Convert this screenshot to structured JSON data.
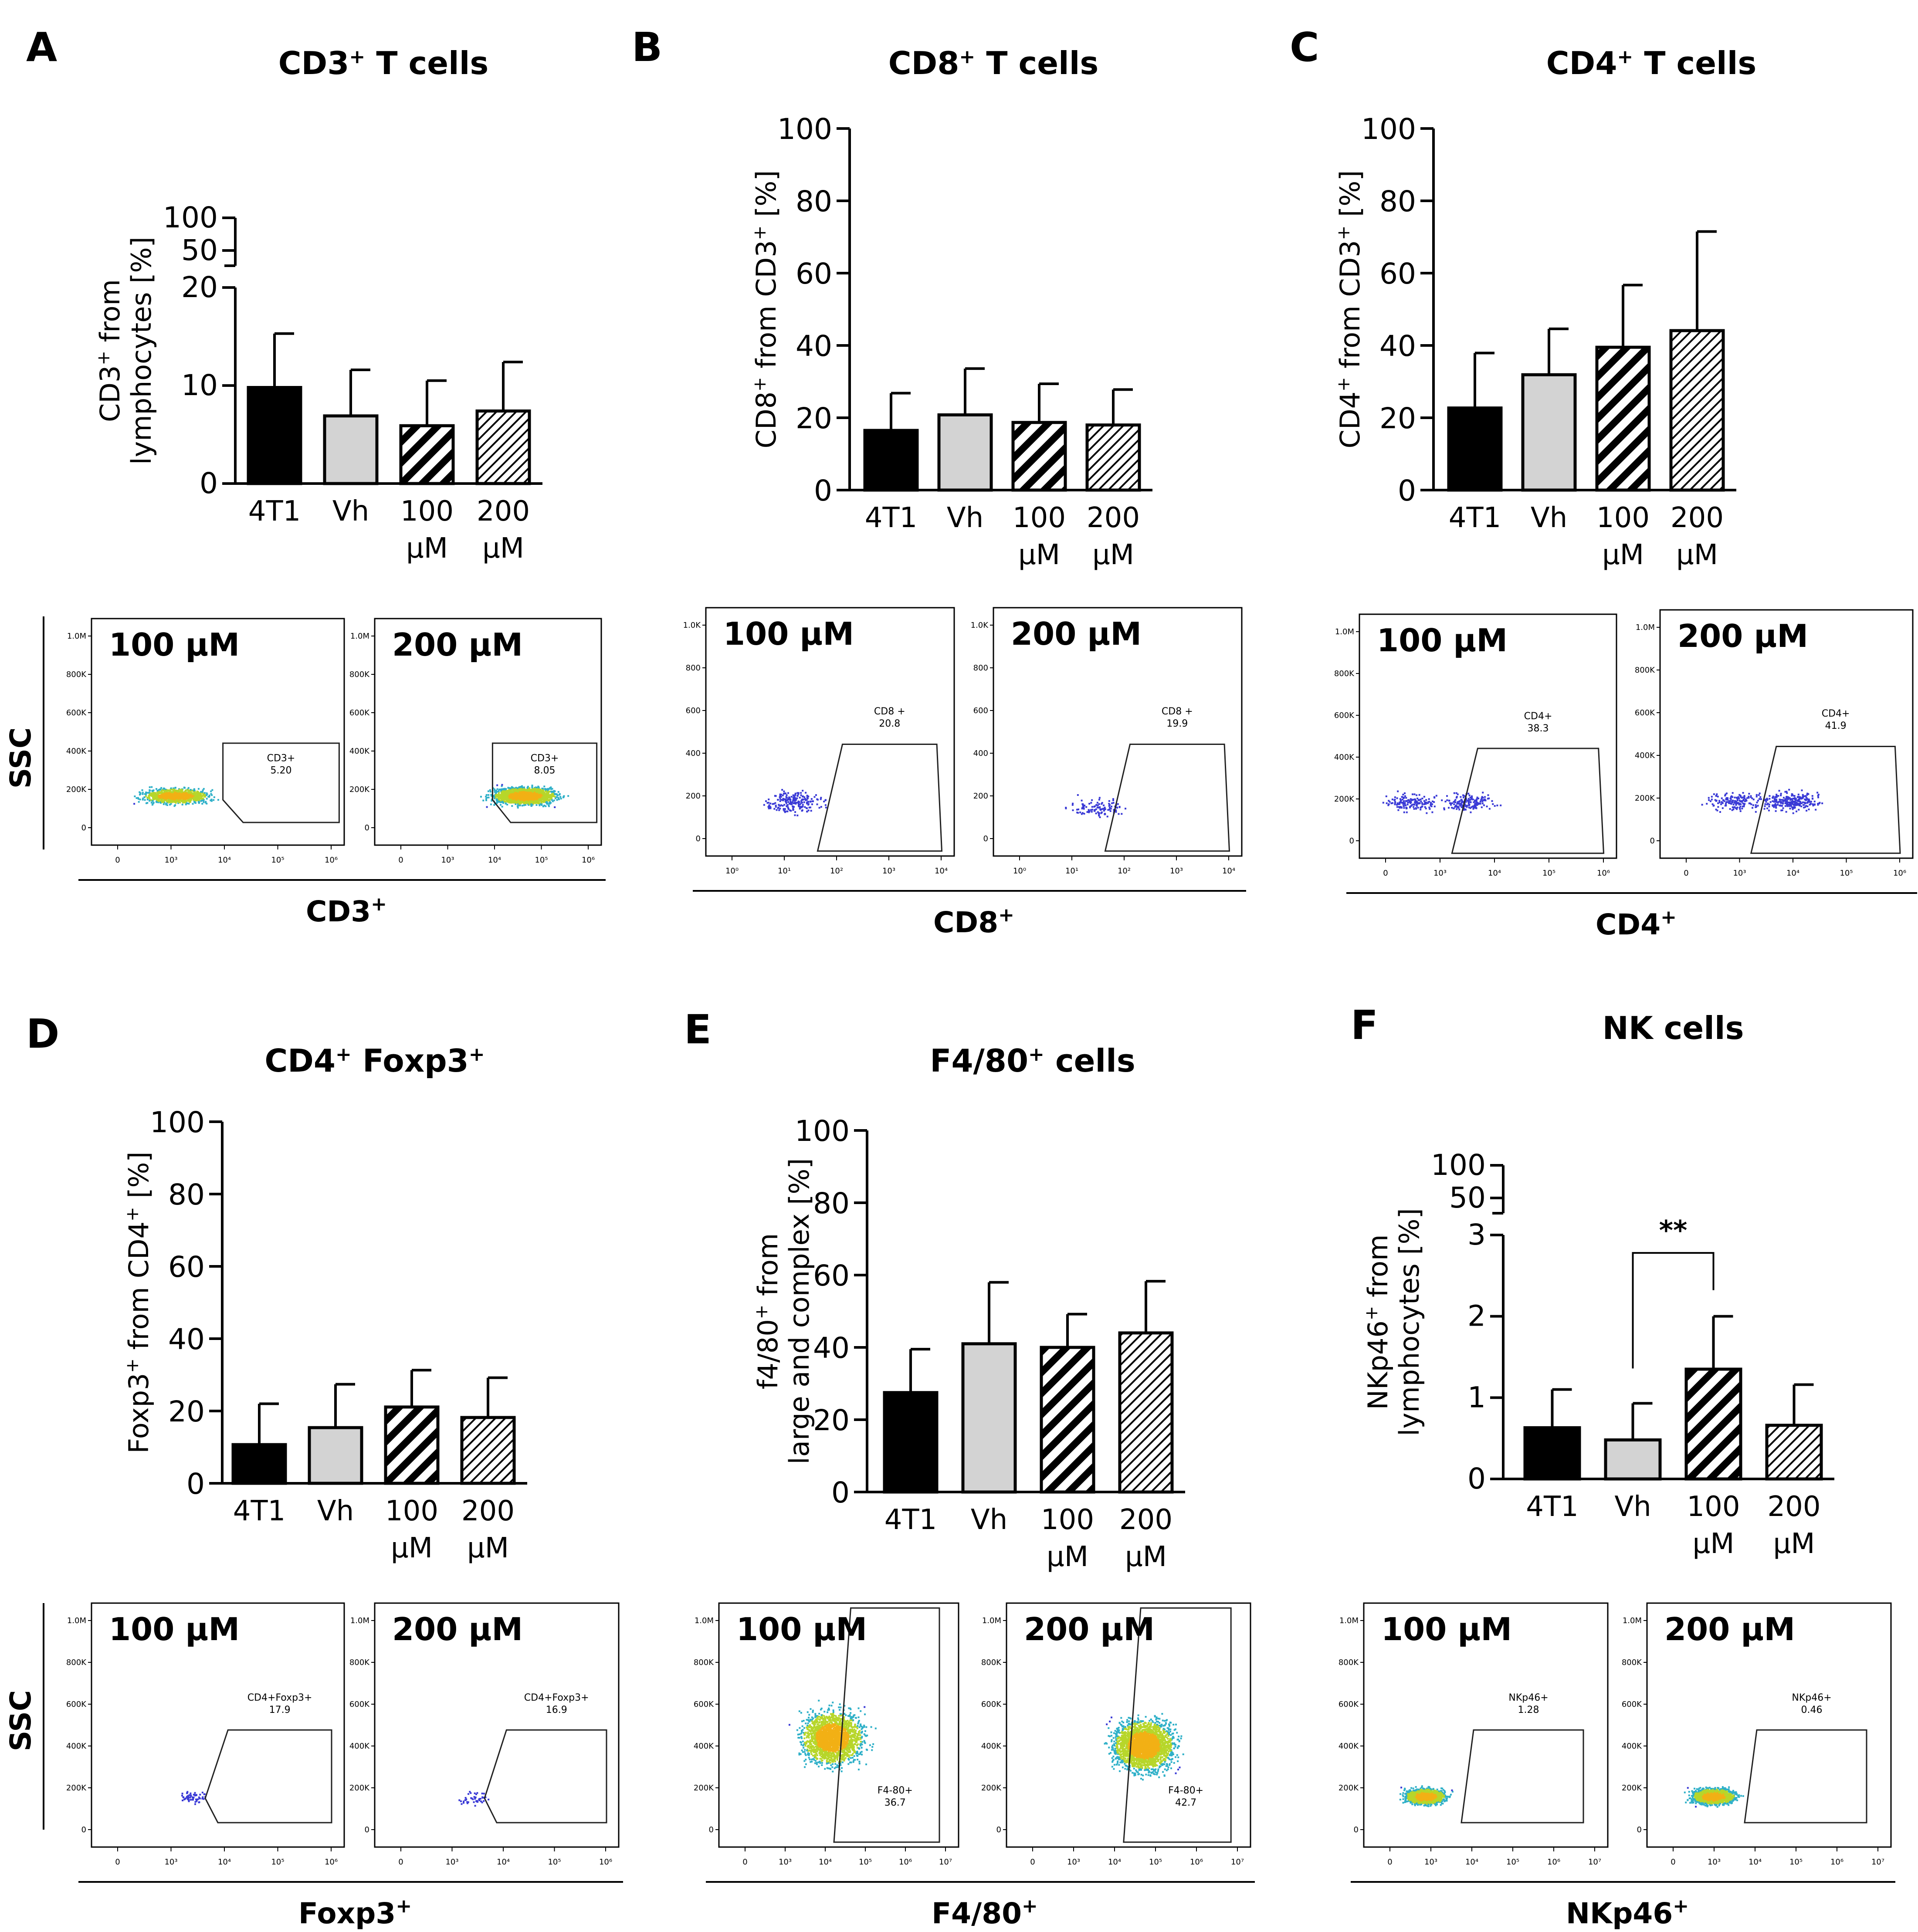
{
  "colors": {
    "bar_4T1": "#000000",
    "bar_Vh": "#d3d3d3",
    "bar_100": "hatch-dense",
    "bar_200": "hatch-fine",
    "dots_low": "#3a3ad6",
    "dots_mid": "#2fb0c8",
    "dots_high": "#b7d62a",
    "dots_peak": "#f2b015"
  },
  "facs_ylabel": "SSC",
  "chart_data": [
    {
      "id": "A",
      "type": "bar",
      "title_main": "CD3",
      "title_sup": "+",
      "title_rest": " T cells",
      "ylabel_lines": [
        [
          "CD3",
          "+",
          " from"
        ],
        [
          "lymphocytes [%]",
          "",
          ""
        ]
      ],
      "categories": [
        [
          "4T1",
          ""
        ],
        [
          "Vh",
          ""
        ],
        [
          "100",
          "μM"
        ],
        [
          "200",
          "μM"
        ]
      ],
      "values": [
        9.8,
        6.9,
        5.9,
        7.4
      ],
      "errors": [
        5.5,
        4.7,
        4.6,
        5.0
      ],
      "broken_axis": {
        "lower_range": [
          0,
          20
        ],
        "lower_ticks": [
          "0",
          "10",
          "20"
        ],
        "upper_ticks": [
          "50",
          "100"
        ]
      },
      "facs": {
        "axis_label": "CD3",
        "axis_sup": "+",
        "plots": [
          {
            "label": "100 μM",
            "gate_name": "CD3+",
            "gate_value": "5.20",
            "y_ticks": [
              "0",
              "200K",
              "400K",
              "600K",
              "800K",
              "1.0M"
            ],
            "x_ticks": [
              "0",
              "10³",
              "10⁴",
              "10⁵",
              "10⁶"
            ]
          },
          {
            "label": "200 μM",
            "gate_name": "CD3+",
            "gate_value": "8.05",
            "y_ticks": [
              "0",
              "200K",
              "400K",
              "600K",
              "800K",
              "1.0M"
            ],
            "x_ticks": [
              "0",
              "10³",
              "10⁴",
              "10⁵",
              "10⁶"
            ]
          }
        ]
      }
    },
    {
      "id": "B",
      "type": "bar",
      "title_main": "CD8",
      "title_sup": "+",
      "title_rest": " T cells",
      "ylabel_lines": [
        [
          "CD8",
          "+",
          " from CD3"
        ],
        [
          "",
          "",
          ""
        ]
      ],
      "ylabel_tail_sup": "+",
      "ylabel_tail": " [%]",
      "categories": [
        [
          "4T1",
          ""
        ],
        [
          "Vh",
          ""
        ],
        [
          "100",
          "μM"
        ],
        [
          "200",
          "μM"
        ]
      ],
      "values": [
        16.5,
        20.8,
        18.7,
        18.0
      ],
      "errors": [
        10.3,
        12.8,
        10.7,
        9.8
      ],
      "ylim": [
        0,
        100
      ],
      "yticks": [
        "0",
        "20",
        "40",
        "60",
        "80",
        "100"
      ],
      "facs": {
        "axis_label": "CD8",
        "axis_sup": "+",
        "plots": [
          {
            "label": "100 μM",
            "gate_name": "CD8 +",
            "gate_value": "20.8",
            "y_ticks": [
              "0",
              "200",
              "400",
              "600",
              "800",
              "1.0K"
            ],
            "x_ticks": [
              "10⁰",
              "10¹",
              "10²",
              "10³",
              "10⁴"
            ]
          },
          {
            "label": "200 μM",
            "gate_name": "CD8 +",
            "gate_value": "19.9",
            "y_ticks": [
              "0",
              "200",
              "400",
              "600",
              "800",
              "1.0K"
            ],
            "x_ticks": [
              "10⁰",
              "10¹",
              "10²",
              "10³",
              "10⁴"
            ]
          }
        ]
      }
    },
    {
      "id": "C",
      "type": "bar",
      "title_main": "CD4",
      "title_sup": "+",
      "title_rest": " T cells",
      "ylabel_lines": [
        [
          "CD4",
          "+",
          " from CD3"
        ],
        [
          "",
          "",
          ""
        ]
      ],
      "ylabel_tail_sup": "+",
      "ylabel_tail": " [%]",
      "categories": [
        [
          "4T1",
          ""
        ],
        [
          "Vh",
          ""
        ],
        [
          "100",
          "μM"
        ],
        [
          "200",
          "μM"
        ]
      ],
      "values": [
        22.7,
        31.9,
        39.5,
        44.1
      ],
      "errors": [
        15.2,
        12.7,
        17.2,
        27.4
      ],
      "ylim": [
        0,
        100
      ],
      "yticks": [
        "0",
        "20",
        "40",
        "60",
        "80",
        "100"
      ],
      "facs": {
        "axis_label": "CD4",
        "axis_sup": "+",
        "plots": [
          {
            "label": "100 μM",
            "gate_name": "CD4+",
            "gate_value": "38.3",
            "y_ticks": [
              "0",
              "200K",
              "400K",
              "600K",
              "800K",
              "1.0M"
            ],
            "x_ticks": [
              "0",
              "10³",
              "10⁴",
              "10⁵",
              "10⁶"
            ]
          },
          {
            "label": "200 μM",
            "gate_name": "CD4+",
            "gate_value": "41.9",
            "y_ticks": [
              "0",
              "200K",
              "400K",
              "600K",
              "800K",
              "1.0M"
            ],
            "x_ticks": [
              "0",
              "10³",
              "10⁴",
              "10⁵",
              "10⁶"
            ]
          }
        ]
      }
    },
    {
      "id": "D",
      "type": "bar",
      "title_main": "CD4",
      "title_sup": "+",
      "title_rest": " Foxp3",
      "title_sup2": "+",
      "ylabel_lines": [
        [
          "Foxp3",
          "+",
          " from CD4"
        ],
        [
          "",
          "",
          ""
        ]
      ],
      "ylabel_tail_sup": "+",
      "ylabel_tail": " [%]",
      "categories": [
        [
          "4T1",
          ""
        ],
        [
          "Vh",
          ""
        ],
        [
          "100",
          "μM"
        ],
        [
          "200",
          "μM"
        ]
      ],
      "values": [
        10.7,
        15.4,
        21.1,
        18.2
      ],
      "errors": [
        11.3,
        12.0,
        10.2,
        11.0
      ],
      "ylim": [
        0,
        100
      ],
      "yticks": [
        "0",
        "20",
        "40",
        "60",
        "80",
        "100"
      ],
      "facs": {
        "axis_label": "Foxp3",
        "axis_sup": "+",
        "plots": [
          {
            "label": "100 μM",
            "gate_name": "CD4+Foxp3+",
            "gate_value": "17.9",
            "y_ticks": [
              "0",
              "200K",
              "400K",
              "600K",
              "800K",
              "1.0M"
            ],
            "x_ticks": [
              "0",
              "10³",
              "10⁴",
              "10⁵",
              "10⁶"
            ]
          },
          {
            "label": "200 μM",
            "gate_name": "CD4+Foxp3+",
            "gate_value": "16.9",
            "y_ticks": [
              "0",
              "200K",
              "400K",
              "600K",
              "800K",
              "1.0M"
            ],
            "x_ticks": [
              "0",
              "10³",
              "10⁴",
              "10⁵",
              "10⁶"
            ]
          }
        ]
      }
    },
    {
      "id": "E",
      "type": "bar",
      "title_main": "F4/80",
      "title_sup": "+",
      "title_rest": " cells",
      "ylabel_lines": [
        [
          "f4/80",
          "+",
          " from"
        ],
        [
          "large and complex [%]",
          "",
          ""
        ]
      ],
      "categories": [
        [
          "4T1",
          ""
        ],
        [
          "Vh",
          ""
        ],
        [
          "100",
          "μM"
        ],
        [
          "200",
          "μM"
        ]
      ],
      "values": [
        27.5,
        41.0,
        40.0,
        44.0
      ],
      "errors": [
        12.0,
        17.0,
        9.2,
        14.3
      ],
      "ylim": [
        0,
        100
      ],
      "yticks": [
        "0",
        "20",
        "40",
        "60",
        "80",
        "100"
      ],
      "facs": {
        "axis_label": "F4/80",
        "axis_sup": "+",
        "plots": [
          {
            "label": "100 μM",
            "gate_name": "F4-80+",
            "gate_value": "36.7",
            "y_ticks": [
              "0",
              "200K",
              "400K",
              "600K",
              "800K",
              "1.0M"
            ],
            "x_ticks": [
              "0",
              "10³",
              "10⁴",
              "10⁵",
              "10⁶",
              "10⁷"
            ]
          },
          {
            "label": "200 μM",
            "gate_name": "F4-80+",
            "gate_value": "42.7",
            "y_ticks": [
              "0",
              "200K",
              "400K",
              "600K",
              "800K",
              "1.0M"
            ],
            "x_ticks": [
              "0",
              "10³",
              "10⁴",
              "10⁵",
              "10⁶",
              "10⁷"
            ]
          }
        ]
      }
    },
    {
      "id": "F",
      "type": "bar",
      "title_main": "NK cells",
      "title_sup": "",
      "title_rest": "",
      "ylabel_lines": [
        [
          "NKp46",
          "+",
          " from"
        ],
        [
          "lymphocytes [%]",
          "",
          ""
        ]
      ],
      "categories": [
        [
          "4T1",
          ""
        ],
        [
          "Vh",
          ""
        ],
        [
          "100",
          "μM"
        ],
        [
          "200",
          "μM"
        ]
      ],
      "values": [
        0.63,
        0.48,
        1.35,
        0.66
      ],
      "errors": [
        0.47,
        0.45,
        0.65,
        0.5
      ],
      "broken_axis": {
        "lower_range": [
          0,
          3
        ],
        "lower_ticks": [
          "0",
          "1",
          "2",
          "3"
        ],
        "upper_ticks": [
          "50",
          "100"
        ]
      },
      "significance": {
        "from": 1,
        "to": 2,
        "label": "**"
      },
      "facs": {
        "axis_label": "NKp46",
        "axis_sup": "+",
        "plots": [
          {
            "label": "100 μM",
            "gate_name": "NKp46+",
            "gate_value": "1.28",
            "y_ticks": [
              "0",
              "200K",
              "400K",
              "600K",
              "800K",
              "1.0M"
            ],
            "x_ticks": [
              "0",
              "10³",
              "10⁴",
              "10⁵",
              "10⁶",
              "10⁷"
            ]
          },
          {
            "label": "200 μM",
            "gate_name": "NKp46+",
            "gate_value": "0.46",
            "y_ticks": [
              "0",
              "200K",
              "400K",
              "600K",
              "800K",
              "1.0M"
            ],
            "x_ticks": [
              "0",
              "10³",
              "10⁴",
              "10⁵",
              "10⁶",
              "10⁷"
            ]
          }
        ]
      }
    }
  ]
}
